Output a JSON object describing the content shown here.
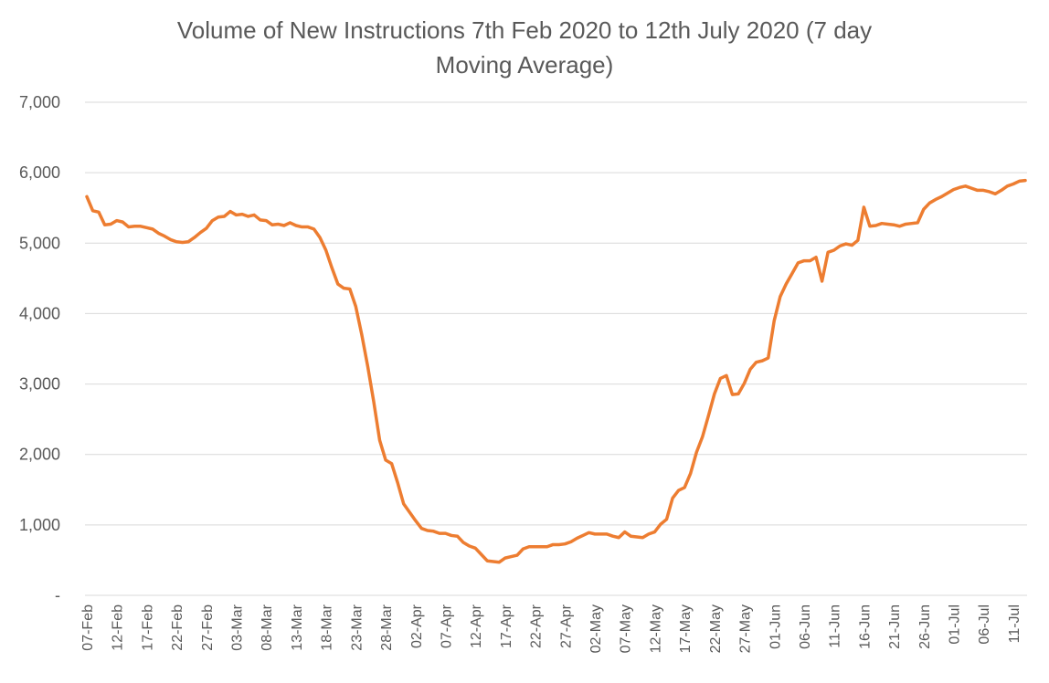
{
  "chart_data": {
    "type": "line",
    "title_line1": "Volume of New Instructions 7th Feb 2020 to 12th July 2020 (7 day",
    "title_line2": "Moving Average)",
    "xlabel": "",
    "ylabel": "",
    "ylim": [
      0,
      7000
    ],
    "yticks": [
      0,
      1000,
      2000,
      3000,
      4000,
      5000,
      6000,
      7000
    ],
    "ytick_labels": [
      "-",
      "1,000",
      "2,000",
      "3,000",
      "4,000",
      "5,000",
      "6,000",
      "7,000"
    ],
    "x_start": "07-Feb",
    "x_end": "12-Jul",
    "x_tick_labels": [
      "07-Feb",
      "12-Feb",
      "17-Feb",
      "22-Feb",
      "27-Feb",
      "03-Mar",
      "08-Mar",
      "13-Mar",
      "18-Mar",
      "23-Mar",
      "28-Mar",
      "02-Apr",
      "07-Apr",
      "12-Apr",
      "17-Apr",
      "22-Apr",
      "27-Apr",
      "02-May",
      "07-May",
      "12-May",
      "17-May",
      "22-May",
      "27-May",
      "01-Jun",
      "06-Jun",
      "11-Jun",
      "16-Jun",
      "21-Jun",
      "26-Jun",
      "01-Jul",
      "06-Jul",
      "11-Jul"
    ],
    "grid": true,
    "legend": "none",
    "series_color": "#ed7d31",
    "values": [
      5660,
      5460,
      5440,
      5260,
      5270,
      5320,
      5300,
      5230,
      5240,
      5240,
      5220,
      5200,
      5140,
      5100,
      5050,
      5020,
      5010,
      5020,
      5080,
      5150,
      5210,
      5320,
      5370,
      5380,
      5450,
      5400,
      5410,
      5380,
      5400,
      5330,
      5320,
      5260,
      5270,
      5250,
      5290,
      5250,
      5230,
      5230,
      5200,
      5080,
      4900,
      4650,
      4420,
      4360,
      4350,
      4100,
      3700,
      3250,
      2750,
      2200,
      1920,
      1870,
      1600,
      1300,
      1180,
      1060,
      950,
      920,
      910,
      880,
      880,
      850,
      840,
      750,
      700,
      670,
      580,
      490,
      480,
      470,
      530,
      550,
      570,
      660,
      690,
      690,
      690,
      690,
      720,
      720,
      730,
      760,
      810,
      850,
      890,
      870,
      870,
      870,
      840,
      820,
      900,
      840,
      830,
      820,
      870,
      900,
      1010,
      1080,
      1380,
      1490,
      1530,
      1730,
      2030,
      2250,
      2550,
      2860,
      3080,
      3120,
      2850,
      2860,
      3010,
      3210,
      3310,
      3330,
      3370,
      3900,
      4240,
      4420,
      4570,
      4720,
      4750,
      4750,
      4800,
      4460,
      4870,
      4900,
      4960,
      4990,
      4970,
      5040,
      5510,
      5240,
      5250,
      5280,
      5270,
      5260,
      5240,
      5270,
      5280,
      5290,
      5480,
      5570,
      5620,
      5660,
      5710,
      5760,
      5790,
      5810,
      5780,
      5750,
      5750,
      5730,
      5700,
      5750,
      5810,
      5840,
      5880,
      5890
    ]
  }
}
